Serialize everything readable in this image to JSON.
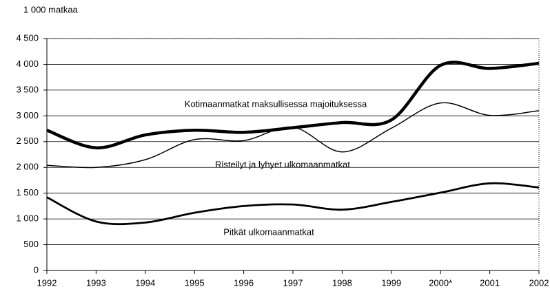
{
  "chart_data": {
    "type": "line",
    "y_axis_label": "1 000 matkaa",
    "categories": [
      "1992",
      "1993",
      "1994",
      "1995",
      "1996",
      "1997",
      "1998",
      "1999",
      "2000*",
      "2001",
      "2002"
    ],
    "series": [
      {
        "name": "Kotimaanmatkat maksullisessa majoituksessa",
        "color": "#000000",
        "values": [
          2720,
          2380,
          2630,
          2720,
          2680,
          2770,
          2870,
          2920,
          3980,
          3920,
          4020
        ]
      },
      {
        "name": "Risteilyt ja lyhyet ulkomaanmatkat",
        "color": "#000000",
        "values": [
          2040,
          2000,
          2150,
          2540,
          2520,
          2780,
          2300,
          2760,
          3250,
          3010,
          3100
        ]
      },
      {
        "name": "Pitkät ulkomaanmatkat",
        "color": "#000000",
        "values": [
          1420,
          950,
          930,
          1120,
          1250,
          1280,
          1180,
          1330,
          1510,
          1690,
          1610
        ]
      }
    ],
    "ylim": [
      0,
      4500
    ],
    "yticks": [
      0,
      500,
      {
        "value": 1000,
        "label": "1 000"
      },
      {
        "value": 1500,
        "label": "1 500"
      },
      {
        "value": 2000,
        "label": "2 000"
      },
      {
        "value": 2500,
        "label": "2 500"
      },
      {
        "value": 3000,
        "label": "3 000"
      },
      {
        "value": 3500,
        "label": "3 500"
      },
      {
        "value": 4000,
        "label": "4 000"
      },
      {
        "value": 4500,
        "label": "4 500"
      }
    ],
    "grid": true
  }
}
